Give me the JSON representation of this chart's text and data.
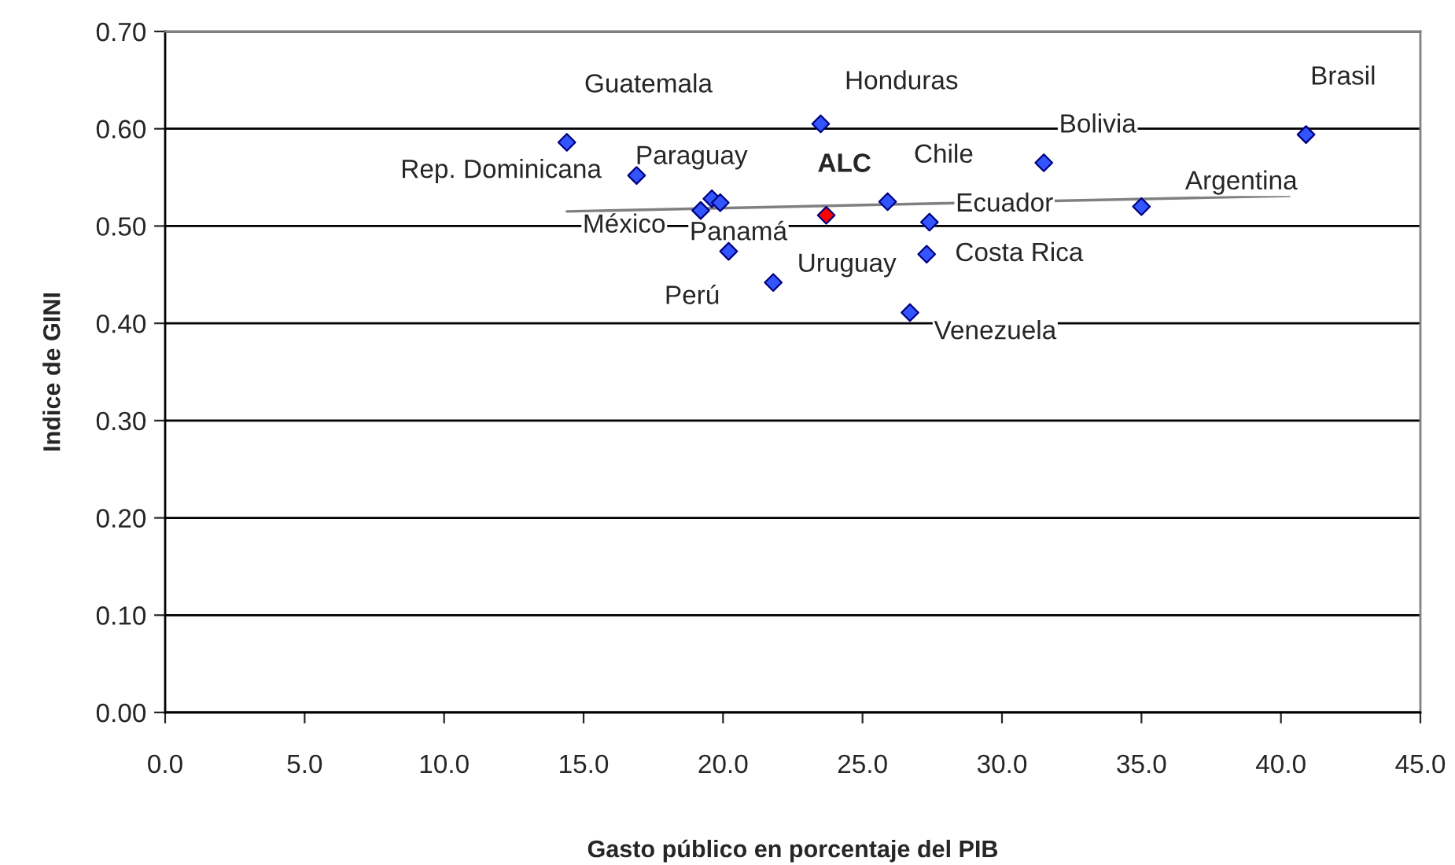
{
  "chart_data": {
    "type": "scatter",
    "xlabel": "Gasto público en porcentaje del PIB",
    "ylabel": "Indice de GINI",
    "xlim": [
      0,
      45
    ],
    "xticks": [
      {
        "value": 0,
        "label": "0.0"
      },
      {
        "value": 5,
        "label": "5.0"
      },
      {
        "value": 10,
        "label": "10.0"
      },
      {
        "value": 15,
        "label": "15.0"
      },
      {
        "value": 20,
        "label": "20.0"
      },
      {
        "value": 25,
        "label": "25.0"
      },
      {
        "value": 30,
        "label": "30.0"
      },
      {
        "value": 35,
        "label": "35.0"
      },
      {
        "value": 40,
        "label": "40.0"
      },
      {
        "value": 45,
        "label": "45.0"
      }
    ],
    "ylim": [
      0,
      0.7
    ],
    "yticks": [
      {
        "value": 0,
        "label": "0.00"
      },
      {
        "value": 0.1,
        "label": "0.10"
      },
      {
        "value": 0.2,
        "label": "0.20"
      },
      {
        "value": 0.3,
        "label": "0.30"
      },
      {
        "value": 0.4,
        "label": "0.40"
      },
      {
        "value": 0.5,
        "label": "0.50"
      },
      {
        "value": 0.6,
        "label": "0.60"
      },
      {
        "value": 0.7,
        "label": "0.70"
      }
    ],
    "grid": "y",
    "marker": "diamond",
    "legend": false,
    "series": [
      {
        "color": "#3355ff",
        "x": [
          14.4,
          23.5,
          40.9,
          31.5,
          35.0,
          16.9,
          19.6,
          19.2,
          19.9,
          25.9,
          27.4,
          27.3,
          20.2,
          21.8,
          26.7
        ],
        "values": [
          0.586,
          0.605,
          0.594,
          0.565,
          0.52,
          0.552,
          0.528,
          0.516,
          0.524,
          0.525,
          0.504,
          0.471,
          0.474,
          0.442,
          0.411
        ]
      },
      {
        "name": "ALC",
        "color": "#ff0000",
        "x": [
          23.7
        ],
        "values": [
          0.511
        ]
      },
      {
        "type": "line",
        "marker": "none",
        "color": "#808080",
        "x": [
          14.4,
          40.3
        ],
        "values": [
          0.515,
          0.531
        ]
      }
    ],
    "annotations": [
      {
        "text": "Guatemala",
        "x": 14.4,
        "y": 0.586
      },
      {
        "text": "Honduras",
        "x": 23.5,
        "y": 0.605
      },
      {
        "text": "Brasil",
        "x": 40.9,
        "y": 0.594
      },
      {
        "text": "Bolivia",
        "x": 31.5,
        "y": 0.565
      },
      {
        "text": "Argentina",
        "x": 35.0,
        "y": 0.52
      },
      {
        "text": "Rep. Dominicana",
        "x": 16.9,
        "y": 0.552
      },
      {
        "text": "Paraguay",
        "x": 19.6,
        "y": 0.528
      },
      {
        "text": "México",
        "x": 19.2,
        "y": 0.516
      },
      {
        "text": "Panamá",
        "x": 19.9,
        "y": 0.524
      },
      {
        "text": "Chile",
        "x": 25.9,
        "y": 0.525
      },
      {
        "text": "Ecuador",
        "x": 27.4,
        "y": 0.504
      },
      {
        "text": "Costa Rica",
        "x": 27.3,
        "y": 0.471
      },
      {
        "text": "Perú",
        "x": 20.2,
        "y": 0.474
      },
      {
        "text": "Uruguay",
        "x": 21.8,
        "y": 0.442
      },
      {
        "text": "Venezuela",
        "x": 26.7,
        "y": 0.411
      }
    ]
  }
}
